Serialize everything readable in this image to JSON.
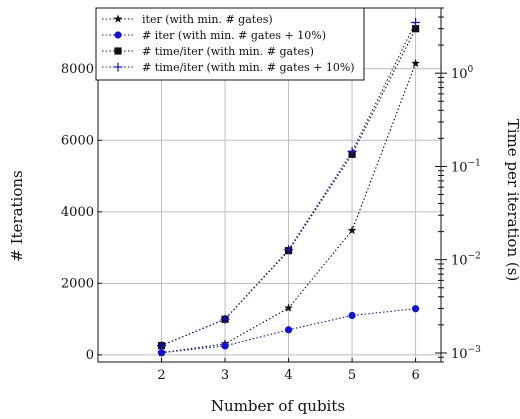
{
  "chart_data": {
    "type": "line",
    "xlabel": "Number of qubits",
    "ylabel_left": "# Iterations",
    "ylabel_right": "Time per iteration (s)",
    "x": [
      2,
      3,
      4,
      5,
      6
    ],
    "xlim": [
      1,
      6.4
    ],
    "ylim_left": [
      -200,
      9700
    ],
    "ylim_right_log": [
      0.0008,
      5
    ],
    "yticks_left": [
      0,
      2000,
      4000,
      6000,
      8000
    ],
    "yticks_right_labels": [
      "10^-3",
      "10^-2",
      "10^-1",
      "10^0"
    ],
    "grid": true,
    "legend_position": "top-left",
    "series": [
      {
        "name": "iter (with min. # gates)",
        "axis": "left",
        "marker": "star",
        "color": "#111111",
        "values": [
          60,
          310,
          1310,
          3480,
          8150
        ]
      },
      {
        "name": "# iter (with min. # gates + 10%)",
        "axis": "left",
        "marker": "circle",
        "color": "#1010e0",
        "values": [
          60,
          250,
          700,
          1100,
          1290
        ]
      },
      {
        "name": "# time/iter (with min. # gates)",
        "axis": "right",
        "marker": "square",
        "color": "#111111",
        "values": [
          0.0012,
          0.0023,
          0.0125,
          0.135,
          3.0
        ]
      },
      {
        "name": "# time/iter (with min. # gates + 10%)",
        "axis": "right",
        "marker": "plus",
        "color": "#1010e0",
        "values": [
          0.0012,
          0.0023,
          0.0128,
          0.145,
          3.5
        ]
      }
    ]
  }
}
